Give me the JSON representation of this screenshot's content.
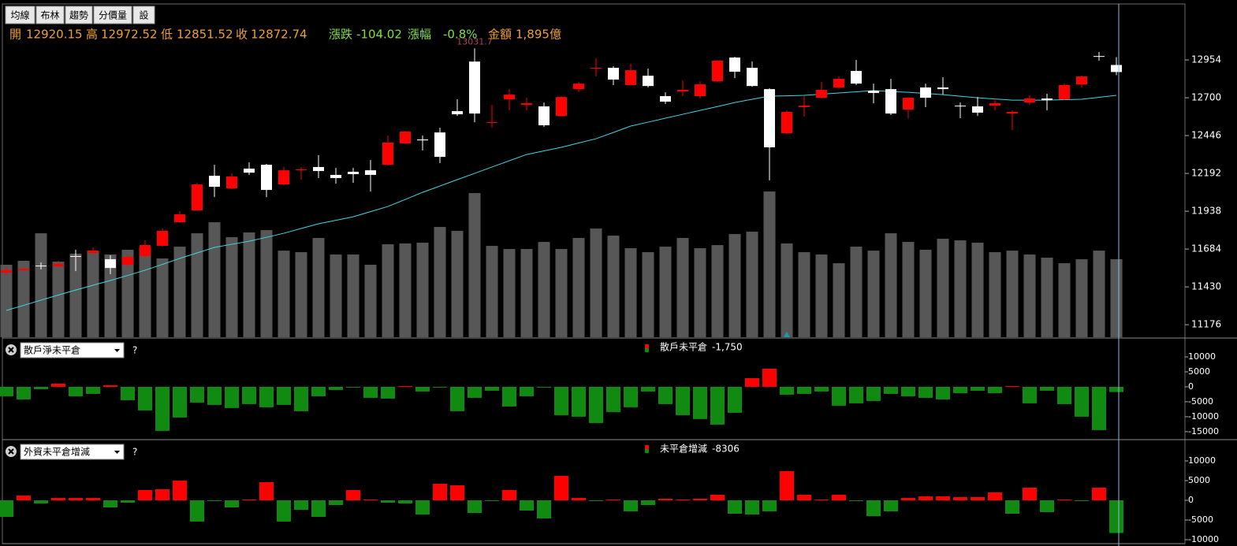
{
  "toolbar": [
    "均線",
    "布林",
    "趨勢",
    "分價量",
    "設"
  ],
  "chart_data": [
    {
      "type": "candlestick",
      "info": {
        "open_label": "開",
        "high_label": "高",
        "low_label": "低",
        "close_label": "收",
        "change_label": "漲跌",
        "change": -104.02,
        "pct_label": "漲幅",
        "pct": {
          "value": -0.8,
          "label": "-0.8%"
        },
        "amount_label": "金額",
        "amount": {
          "value": 1895,
          "label": "1,895億"
        }
      },
      "up_color": "#ff0000",
      "down_color": "#ffffff",
      "ylim": [
        11092,
        13330
      ],
      "yticks": [
        12954,
        12700,
        12446,
        12192,
        11938,
        11684,
        11430,
        11176
      ],
      "ohlc": [
        [
          11526,
          11568,
          11504,
          11542
        ],
        [
          11542,
          11563,
          11531,
          11552
        ],
        [
          11573,
          11594,
          11547,
          11568
        ],
        [
          11568,
          11605,
          11557,
          11584
        ],
        [
          11637,
          11679,
          11536,
          11632
        ],
        [
          11658,
          11695,
          11647,
          11674
        ],
        [
          11616,
          11642,
          11515,
          11557
        ],
        [
          11579,
          11647,
          11563,
          11632
        ],
        [
          11637,
          11743,
          11626,
          11711
        ],
        [
          11706,
          11822,
          11700,
          11806
        ],
        [
          11864,
          11938,
          11859,
          11917
        ],
        [
          11944,
          12129,
          11938,
          12118
        ],
        [
          12176,
          12250,
          12033,
          12102
        ],
        [
          12092,
          12192,
          12086,
          12171
        ],
        [
          12224,
          12266,
          12182,
          12197
        ],
        [
          12250,
          12256,
          12033,
          12081
        ],
        [
          12118,
          12235,
          12113,
          12213
        ],
        [
          12213,
          12235,
          12150,
          12219
        ],
        [
          12235,
          12314,
          12161,
          12208
        ],
        [
          12182,
          12229,
          12123,
          12161
        ],
        [
          12203,
          12229,
          12129,
          12187
        ],
        [
          12213,
          12282,
          12071,
          12182
        ],
        [
          12250,
          12446,
          12245,
          12399
        ],
        [
          12393,
          12478,
          12388,
          12473
        ],
        [
          12420,
          12446,
          12346,
          12414
        ],
        [
          12467,
          12499,
          12261,
          12303
        ],
        [
          12610,
          12690,
          12578,
          12589
        ],
        [
          12943,
          13031.7,
          12536,
          12594
        ],
        [
          12531,
          12652,
          12499,
          12536
        ],
        [
          12690,
          12758,
          12615,
          12721
        ],
        [
          12652,
          12700,
          12615,
          12663
        ],
        [
          12642,
          12668,
          12504,
          12515
        ],
        [
          12578,
          12711,
          12573,
          12705
        ],
        [
          12758,
          12806,
          12737,
          12795
        ],
        [
          12896,
          12965,
          12843,
          12901
        ],
        [
          12901,
          12912,
          12785,
          12822
        ],
        [
          12785,
          12928,
          12779,
          12885
        ],
        [
          12848,
          12896,
          12769,
          12779
        ],
        [
          12711,
          12737,
          12658,
          12674
        ],
        [
          12742,
          12816,
          12711,
          12753
        ],
        [
          12711,
          12811,
          12695,
          12790
        ],
        [
          12811,
          12954,
          12806,
          12949
        ],
        [
          12970,
          12975,
          12832,
          12875
        ],
        [
          12901,
          12943,
          12774,
          12779
        ],
        [
          12758,
          12763,
          12145,
          12367
        ],
        [
          12462,
          12615,
          12457,
          12605
        ],
        [
          12637,
          12711,
          12573,
          12647
        ],
        [
          12700,
          12806,
          12695,
          12753
        ],
        [
          12769,
          12843,
          12758,
          12827
        ],
        [
          12880,
          12954,
          12785,
          12795
        ],
        [
          12748,
          12795,
          12663,
          12732
        ],
        [
          12758,
          12827,
          12584,
          12594
        ],
        [
          12621,
          12705,
          12563,
          12700
        ],
        [
          12769,
          12795,
          12637,
          12700
        ],
        [
          12769,
          12838,
          12721,
          12758
        ],
        [
          12647,
          12668,
          12563,
          12642
        ],
        [
          12642,
          12705,
          12578,
          12600
        ],
        [
          12647,
          12695,
          12615,
          12663
        ],
        [
          12594,
          12615,
          12483,
          12605
        ],
        [
          12668,
          12716,
          12652,
          12695
        ],
        [
          12695,
          12727,
          12615,
          12684
        ],
        [
          12690,
          12795,
          12684,
          12785
        ],
        [
          12790,
          12848,
          12769,
          12843
        ],
        [
          12980,
          13007,
          12949,
          12976.76
        ],
        [
          12920.15,
          12972.52,
          12851.52,
          12872.74
        ]
      ],
      "ma": {
        "color": "#3fd8e0",
        "values": [
          11272,
          11306,
          11341,
          11375,
          11409,
          11441,
          11473,
          11507,
          11542,
          11581,
          11621,
          11658,
          11695,
          11716,
          11737,
          11763,
          11790,
          11822,
          11854,
          11877,
          11901,
          11935,
          11970,
          12017,
          12065,
          12107,
          12150,
          12192,
          12235,
          12277,
          12319,
          12343,
          12367,
          12396,
          12425,
          12467,
          12510,
          12536,
          12563,
          12589,
          12615,
          12641,
          12668,
          12690,
          12711,
          12713,
          12716,
          12724,
          12732,
          12740,
          12748,
          12742,
          12737,
          12729,
          12721,
          12710,
          12700,
          12692,
          12684,
          12684,
          12684,
          12687,
          12690,
          12703,
          12716
        ]
      },
      "volume": {
        "color": "#575757",
        "vlim": [
          0,
          8100
        ],
        "values": [
          1761,
          1857,
          2526,
          1837,
          2029,
          2105,
          2010,
          2125,
          2182,
          1914,
          2201,
          2526,
          2794,
          2431,
          2546,
          2603,
          2105,
          2067,
          2412,
          2010,
          2010,
          1761,
          2259,
          2278,
          2297,
          2680,
          2584,
          3503,
          2220,
          2144,
          2144,
          2316,
          2144,
          2412,
          2641,
          2469,
          2163,
          2067,
          2201,
          2412,
          2163,
          2239,
          2507,
          2565,
          3541,
          2278,
          2067,
          2010,
          1799,
          2201,
          2105,
          2526,
          2316,
          2125,
          2393,
          2354,
          2297,
          2067,
          2105,
          2010,
          1933,
          1799,
          1895,
          2105,
          1895
        ]
      }
    },
    {
      "type": "bar",
      "selector": "散戶淨未平倉",
      "help": "?",
      "ylim": [
        -17400,
        16050
      ],
      "yticks": [
        10000,
        5000,
        0,
        -5000,
        -10000,
        -15000
      ],
      "pos_color": "#ff0000",
      "neg_color": "#108a10",
      "series": [
        {
          "name": "散戶未平倉",
          "values": [
            -3158,
            -4211,
            -789,
            1053,
            -3158,
            -2368,
            526,
            -4474,
            -7895,
            -14737,
            -10263,
            -5263,
            -6053,
            -7105,
            -5789,
            -6842,
            -6053,
            -8158,
            -3158,
            -1053,
            -263,
            -3684,
            -3947,
            263,
            -1579,
            -263,
            -8158,
            -3684,
            -1316,
            -6579,
            -3158,
            -263,
            -9474,
            -10000,
            -12105,
            -8421,
            -6842,
            -1579,
            -5789,
            -9474,
            -10789,
            -12632,
            -8684,
            2895,
            6053,
            -2632,
            -2368,
            -1579,
            -6316,
            -5526,
            -4737,
            -2368,
            -3158,
            -3684,
            -4211,
            -2105,
            -1316,
            -2105,
            263,
            -5526,
            -1316,
            -5789,
            -10000,
            -14474,
            -1750
          ],
          "value_labels": [
            null,
            null,
            null,
            null,
            null,
            null,
            null,
            null,
            null,
            null,
            null,
            null,
            null,
            null,
            null,
            null,
            null,
            null,
            null,
            null,
            null,
            null,
            null,
            null,
            null,
            null,
            null,
            null,
            null,
            null,
            null,
            null,
            null,
            null,
            null,
            null,
            null,
            null,
            null,
            null,
            null,
            null,
            null,
            null,
            null,
            null,
            null,
            null,
            null,
            null,
            null,
            null,
            null,
            null,
            null,
            null,
            null,
            null,
            null,
            null,
            null,
            null,
            null,
            null,
            "-1,750"
          ]
        }
      ]
    },
    {
      "type": "bar",
      "selector": "外資未平倉增減",
      "help": "?",
      "ylim": [
        -11000,
        15000
      ],
      "yticks": [
        10000,
        5000,
        0,
        -5000,
        -10000
      ],
      "pos_color": "#ff0000",
      "neg_color": "#108a10",
      "series": [
        {
          "name": "未平倉增減",
          "values": [
            -4200,
            1200,
            -800,
            600,
            600,
            600,
            -1800,
            -600,
            2600,
            2800,
            5000,
            -5400,
            -200,
            -1800,
            200,
            4600,
            -5400,
            -2400,
            -4200,
            -1200,
            2600,
            200,
            -600,
            -800,
            -3600,
            4200,
            3800,
            -3200,
            -200,
            2600,
            -2600,
            -4600,
            6200,
            600,
            -200,
            200,
            -2800,
            -1200,
            400,
            200,
            400,
            1400,
            -3400,
            -3600,
            -2800,
            7400,
            1400,
            200,
            1400,
            -200,
            -4000,
            -2800,
            600,
            1000,
            1000,
            800,
            800,
            2000,
            -3400,
            3200,
            -3000,
            200,
            -200,
            3200,
            -8306
          ]
        }
      ]
    }
  ]
}
